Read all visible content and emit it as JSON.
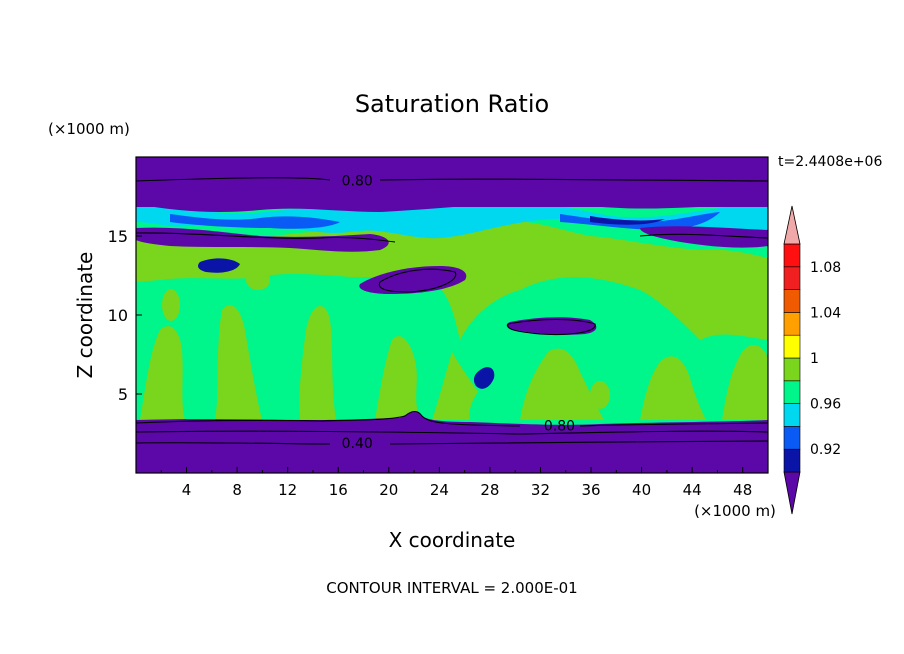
{
  "chart_data": {
    "type": "heatmap",
    "title": "Saturation Ratio",
    "xlabel": "X coordinate",
    "ylabel": "Z coordinate",
    "x_unit": "(×1000 m)",
    "y_unit": "(×1000 m)",
    "time_label": "t=2.4408e+06",
    "footer": "CONTOUR INTERVAL = 2.000E-01",
    "xlim": [
      0,
      50
    ],
    "ylim": [
      0,
      20
    ],
    "x_ticks": [
      "4",
      "8",
      "12",
      "16",
      "20",
      "24",
      "28",
      "32",
      "36",
      "40",
      "44",
      "48"
    ],
    "x_tick_values": [
      4,
      8,
      12,
      16,
      20,
      24,
      28,
      32,
      36,
      40,
      44,
      48
    ],
    "y_ticks": [
      "5",
      "10",
      "15"
    ],
    "y_tick_values": [
      5,
      10,
      15
    ],
    "contour_labels": [
      {
        "text": "0.80",
        "x": 17.5,
        "z": 18.5
      },
      {
        "text": "0.80",
        "x": 33.5,
        "z": 3.0
      },
      {
        "text": "0.40",
        "x": 17.5,
        "z": 1.9
      }
    ],
    "colorbar": {
      "labels": [
        "1.08",
        "1.04",
        "1",
        "0.96",
        "0.92"
      ],
      "label_values": [
        1.08,
        1.04,
        1.0,
        0.96,
        0.92
      ],
      "levels": [
        0.9,
        0.92,
        0.94,
        0.96,
        0.98,
        1.0,
        1.02,
        1.04,
        1.06,
        1.08,
        1.1
      ],
      "colors": [
        "#5c08a8",
        "#0a14a6",
        "#0a5af5",
        "#00d8f0",
        "#00f58a",
        "#7ad61c",
        "#ffff00",
        "#ffa000",
        "#f05a00",
        "#f02020",
        "#ff1010",
        "#f0a8a8"
      ]
    },
    "regions": {
      "moist": "#00f58a",
      "supersat": "#7ad61c",
      "dry_band": "#5c08a8",
      "subsat_light": "#00d8f0",
      "subsat_mid": "#0a5af5",
      "subsat_dark": "#0a14a6"
    }
  }
}
